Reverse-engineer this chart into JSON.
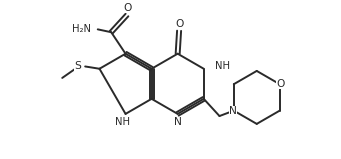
{
  "bg_color": "#ffffff",
  "line_color": "#2a2a2a",
  "line_width": 1.4,
  "font_size": 7.2,
  "fig_width": 3.41,
  "fig_height": 1.59,
  "xlim": [
    0,
    9.5
  ],
  "ylim": [
    0,
    5.5
  ]
}
